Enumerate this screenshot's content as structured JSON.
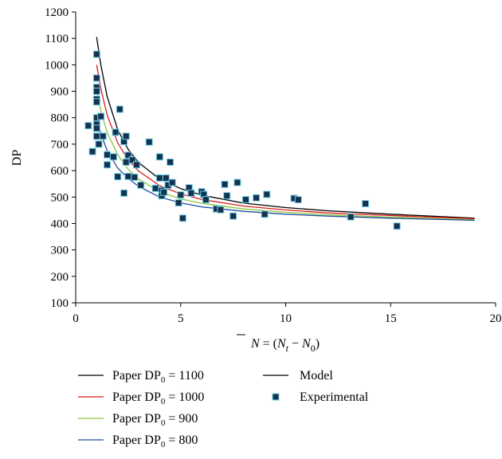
{
  "chart_data": {
    "type": "scatter",
    "xlabel": "N̄ = (N_t − N_0)",
    "ylabel": "DP",
    "xlim": [
      0,
      20
    ],
    "ylim": [
      100,
      1200
    ],
    "x_ticks": [
      0,
      5,
      10,
      15,
      20
    ],
    "y_ticks": [
      100,
      200,
      300,
      400,
      500,
      600,
      700,
      800,
      900,
      1000,
      1100,
      1200
    ],
    "grid": false,
    "legend_position": "bottom",
    "series": [
      {
        "name": "Paper DP0 = 1100",
        "legend_label": "Paper DP",
        "legend_sub": "0",
        "legend_value": " = 1100",
        "type": "line",
        "color": "#000000",
        "x": [
          1,
          1.2,
          1.5,
          2,
          2.5,
          3,
          4,
          5,
          6,
          8,
          10,
          12,
          15,
          19
        ],
        "y": [
          1105,
          999,
          880,
          755,
          680,
          630,
          568,
          532,
          507,
          477,
          460,
          448,
          435,
          420
        ]
      },
      {
        "name": "Paper DP0 = 1000",
        "legend_label": "Paper DP",
        "legend_sub": "0",
        "legend_value": " = 1000",
        "type": "line",
        "color": "#dd1c1c",
        "x": [
          1,
          1.2,
          1.5,
          2,
          2.5,
          3,
          4,
          5,
          6,
          8,
          10,
          12,
          15,
          19
        ],
        "y": [
          1000,
          910,
          810,
          705,
          640,
          598,
          543,
          512,
          491,
          466,
          451,
          440,
          430,
          418
        ]
      },
      {
        "name": "Paper DP0 = 900",
        "legend_label": "Paper DP",
        "legend_sub": "0",
        "legend_value": " = 900",
        "type": "line",
        "color": "#8cc63e",
        "x": [
          1,
          1.2,
          1.5,
          2,
          2.5,
          3,
          4,
          5,
          6,
          8,
          10,
          12,
          15,
          19
        ],
        "y": [
          900,
          826,
          745,
          660,
          605,
          568,
          520,
          493,
          476,
          455,
          442,
          433,
          424,
          414
        ]
      },
      {
        "name": "Paper DP0 = 800",
        "legend_label": "Paper DP",
        "legend_sub": "0",
        "legend_value": " = 800",
        "type": "line",
        "color": "#1f4e9e",
        "x": [
          1,
          1.2,
          1.5,
          2,
          2.5,
          3,
          4,
          5,
          6,
          8,
          10,
          12,
          15,
          19
        ],
        "y": [
          800,
          740,
          675,
          610,
          570,
          540,
          500,
          478,
          463,
          446,
          435,
          428,
          420,
          412
        ]
      },
      {
        "name": "Model",
        "legend_label": "Model",
        "type": "line",
        "color": "#000000",
        "x": [],
        "y": []
      },
      {
        "name": "Experimental",
        "legend_label": "Experimental",
        "type": "scatter",
        "color": "#16324f",
        "points": [
          [
            0.6,
            770
          ],
          [
            0.8,
            672
          ],
          [
            1.0,
            1040
          ],
          [
            1.0,
            950
          ],
          [
            1.0,
            915
          ],
          [
            1.0,
            900
          ],
          [
            1.0,
            870
          ],
          [
            1.0,
            860
          ],
          [
            1.0,
            800
          ],
          [
            1.0,
            775
          ],
          [
            1.0,
            760
          ],
          [
            1.0,
            730
          ],
          [
            1.1,
            700
          ],
          [
            1.2,
            805
          ],
          [
            1.3,
            730
          ],
          [
            1.5,
            660
          ],
          [
            1.5,
            622
          ],
          [
            1.8,
            652
          ],
          [
            1.9,
            745
          ],
          [
            2.0,
            577
          ],
          [
            2.1,
            832
          ],
          [
            2.3,
            515
          ],
          [
            2.3,
            710
          ],
          [
            2.4,
            730
          ],
          [
            2.4,
            632
          ],
          [
            2.5,
            578
          ],
          [
            2.5,
            658
          ],
          [
            2.7,
            640
          ],
          [
            2.8,
            575
          ],
          [
            2.9,
            622
          ],
          [
            3.1,
            545
          ],
          [
            3.5,
            708
          ],
          [
            3.8,
            533
          ],
          [
            4.0,
            572
          ],
          [
            4.0,
            652
          ],
          [
            4.1,
            525
          ],
          [
            4.1,
            505
          ],
          [
            4.2,
            518
          ],
          [
            4.3,
            572
          ],
          [
            4.4,
            545
          ],
          [
            4.5,
            632
          ],
          [
            4.6,
            555
          ],
          [
            4.9,
            478
          ],
          [
            5.0,
            508
          ],
          [
            5.1,
            420
          ],
          [
            5.4,
            535
          ],
          [
            5.5,
            515
          ],
          [
            6.0,
            520
          ],
          [
            6.1,
            510
          ],
          [
            6.2,
            490
          ],
          [
            6.7,
            455
          ],
          [
            6.9,
            452
          ],
          [
            7.1,
            548
          ],
          [
            7.2,
            505
          ],
          [
            7.5,
            428
          ],
          [
            7.7,
            555
          ],
          [
            8.1,
            490
          ],
          [
            8.6,
            497
          ],
          [
            9.0,
            435
          ],
          [
            9.1,
            510
          ],
          [
            10.4,
            495
          ],
          [
            10.6,
            490
          ],
          [
            13.1,
            425
          ],
          [
            13.8,
            475
          ],
          [
            15.3,
            390
          ]
        ]
      }
    ]
  },
  "colors": {
    "axis": "#000000",
    "marker_edge": "#6fd3e8"
  }
}
